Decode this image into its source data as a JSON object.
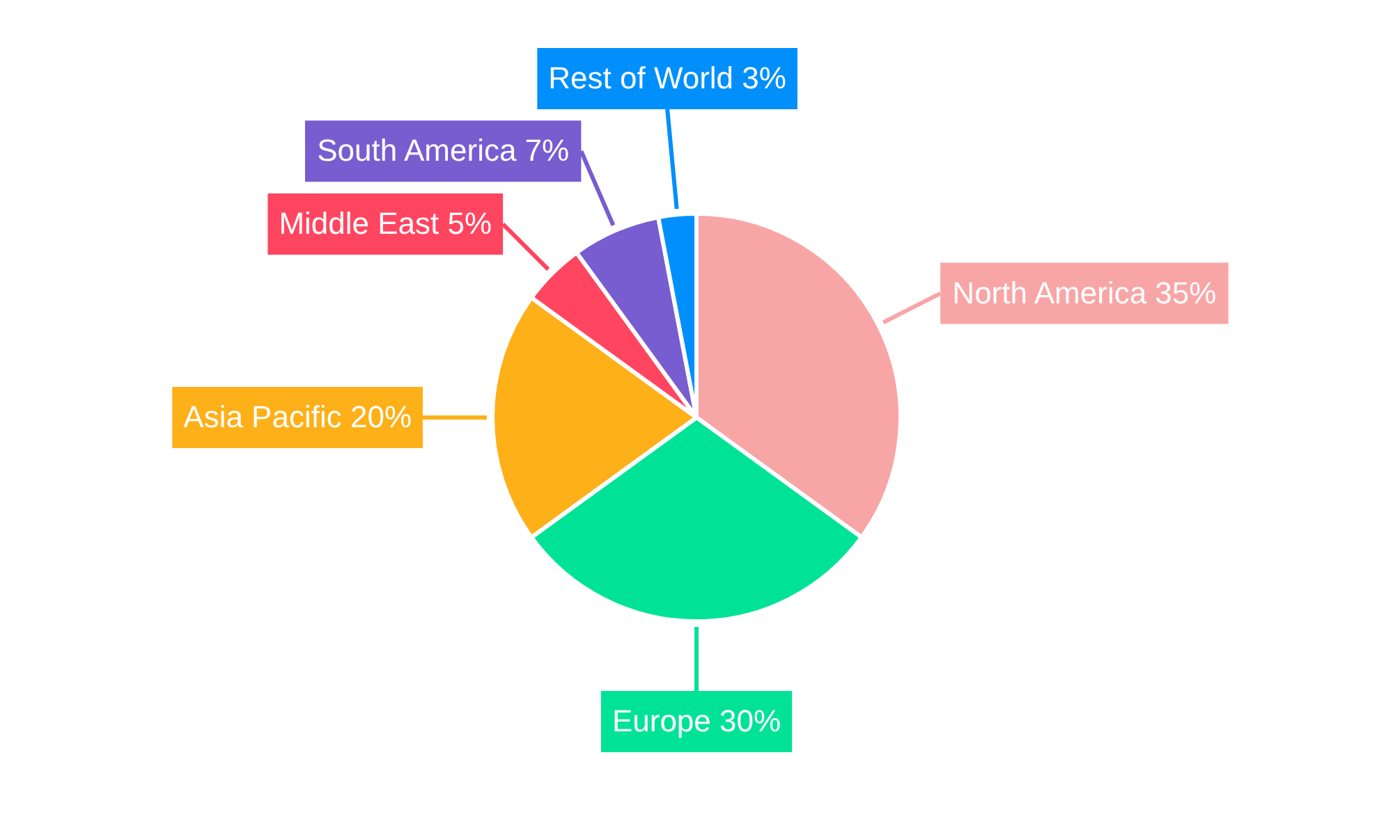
{
  "chart_data": {
    "type": "pie",
    "categories": [
      "North America",
      "Europe",
      "Asia Pacific",
      "Middle East",
      "South America",
      "Rest of World"
    ],
    "values": [
      35,
      30,
      20,
      5,
      7,
      3
    ],
    "colors": [
      "#f8a5a6",
      "#00e396",
      "#feb019",
      "#ff4560",
      "#775dd0",
      "#008ffb"
    ],
    "value_labels": [
      "35%",
      "30%",
      "20%",
      "5%",
      "7%",
      "3%"
    ]
  }
}
